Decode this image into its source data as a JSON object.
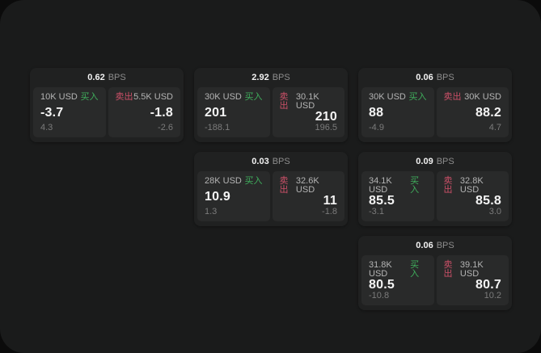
{
  "labels": {
    "bps_unit": "BPS",
    "buy": "买入",
    "sell": "卖出"
  },
  "colors": {
    "page_outside": "#0b0b0b",
    "panel_bg": "#1a1b1b",
    "card_bg": "#202121",
    "tile_bg": "#292a2a",
    "buy_green": "#3fae5c",
    "sell_red": "#cc5068",
    "value_white": "#f4f4f4",
    "label_gray": "#b4b4b4",
    "delta_gray": "#7b7b7b"
  },
  "cards": [
    {
      "row": 1,
      "col": 1,
      "bps": "0.62",
      "buy": {
        "size": "10K USD",
        "value": "-3.7",
        "delta": "4.3"
      },
      "sell": {
        "size": "5.5K USD",
        "value": "-1.8",
        "delta": "-2.6"
      }
    },
    {
      "row": 1,
      "col": 2,
      "bps": "2.92",
      "buy": {
        "size": "30K USD",
        "value": "201",
        "delta": "-188.1"
      },
      "sell": {
        "size": "30.1K USD",
        "value": "210",
        "delta": "196.5"
      }
    },
    {
      "row": 1,
      "col": 3,
      "bps": "0.06",
      "buy": {
        "size": "30K USD",
        "value": "88",
        "delta": "-4.9"
      },
      "sell": {
        "size": "30K USD",
        "value": "88.2",
        "delta": "4.7"
      }
    },
    {
      "row": 2,
      "col": 2,
      "bps": "0.03",
      "buy": {
        "size": "28K USD",
        "value": "10.9",
        "delta": "1.3"
      },
      "sell": {
        "size": "32.6K USD",
        "value": "11",
        "delta": "-1.8"
      }
    },
    {
      "row": 2,
      "col": 3,
      "bps": "0.09",
      "buy": {
        "size": "34.1K USD",
        "value": "85.5",
        "delta": "-3.1"
      },
      "sell": {
        "size": "32.8K USD",
        "value": "85.8",
        "delta": "3.0"
      }
    },
    {
      "row": 3,
      "col": 3,
      "bps": "0.06",
      "buy": {
        "size": "31.8K USD",
        "value": "80.5",
        "delta": "-10.8"
      },
      "sell": {
        "size": "39.1K USD",
        "value": "80.7",
        "delta": "10.2"
      }
    }
  ]
}
